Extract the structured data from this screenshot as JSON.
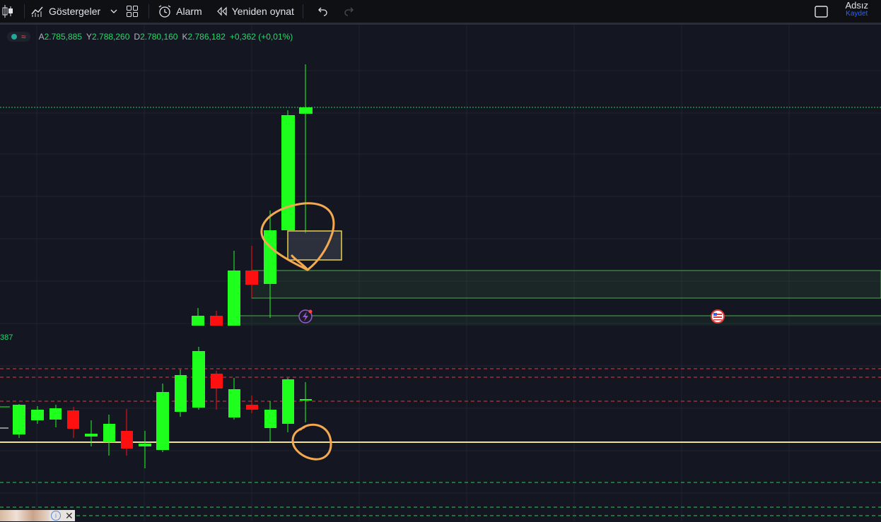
{
  "toolbar": {
    "indicators_label": "Göstergeler",
    "alarm_label": "Alarm",
    "replay_label": "Yeniden oynat",
    "icons": {
      "candles": "candlestick-icon",
      "indicators": "chart-indicator-icon",
      "chevron": "chevron-down-icon",
      "layout": "grid-layout-icon",
      "alarm": "alarm-clock-icon",
      "replay": "replay-icon",
      "undo": "undo-icon",
      "redo": "redo-icon",
      "fullscreen": "square-icon"
    },
    "title": "Adsız",
    "save_label": "Kaydet"
  },
  "legend": {
    "open_label": "A",
    "open_value": "2.785,885",
    "high_label": "Y",
    "high_value": "2.788,260",
    "low_label": "D",
    "low_value": "2.780,160",
    "close_label": "K",
    "close_value": "2.786,182",
    "change": "+0,362 (+0,01%)"
  },
  "price_axis_partial": "387",
  "colors": {
    "background": "#141722",
    "up": "#1eff1e",
    "down": "#ff1010",
    "grid": "#1f2330",
    "annotation": "#f4a950",
    "box": "#e8d04a",
    "zone": "#6fd06f",
    "red_dash": "#e03b3b",
    "green_dash": "#2bcc55",
    "yellow_line": "#f1e08f"
  }
}
